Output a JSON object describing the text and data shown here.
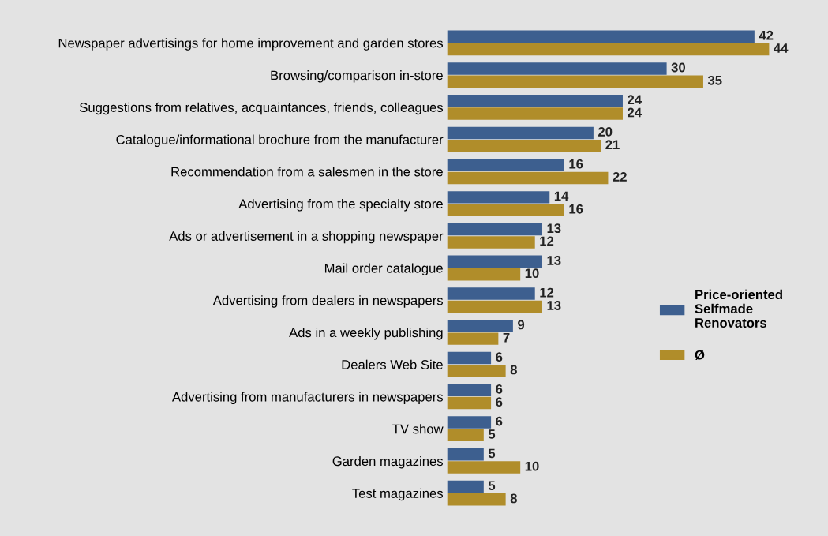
{
  "chart_data": {
    "type": "bar",
    "orientation": "horizontal",
    "categories": [
      "Newspaper advertisings for home improvement and garden stores",
      "Browsing/comparison in-store",
      "Suggestions from relatives, acquaintances, friends, colleagues",
      "Catalogue/informational brochure from the manufacturer",
      "Recommendation from a salesmen in the store",
      "Advertising from the specialty store",
      "Ads or advertisement in a shopping newspaper",
      "Mail order catalogue",
      "Advertising from dealers in newspapers",
      "Ads in a weekly publishing",
      "Dealers Web Site",
      "Advertising from manufacturers in newspapers",
      "TV show",
      "Garden magazines",
      "Test magazines"
    ],
    "series": [
      {
        "name": "Price-oriented\nSelfmade\nRenovators",
        "color": "#3d5f8f",
        "values": [
          42,
          30,
          24,
          20,
          16,
          14,
          13,
          13,
          12,
          9,
          6,
          6,
          6,
          5,
          5
        ]
      },
      {
        "name": "Ø",
        "color": "#b08d2a",
        "values": [
          44,
          35,
          24,
          21,
          22,
          16,
          12,
          10,
          13,
          7,
          8,
          6,
          5,
          10,
          8
        ]
      }
    ],
    "data_labels": true,
    "tick_labels": "y",
    "legend": "right",
    "grid": false
  }
}
